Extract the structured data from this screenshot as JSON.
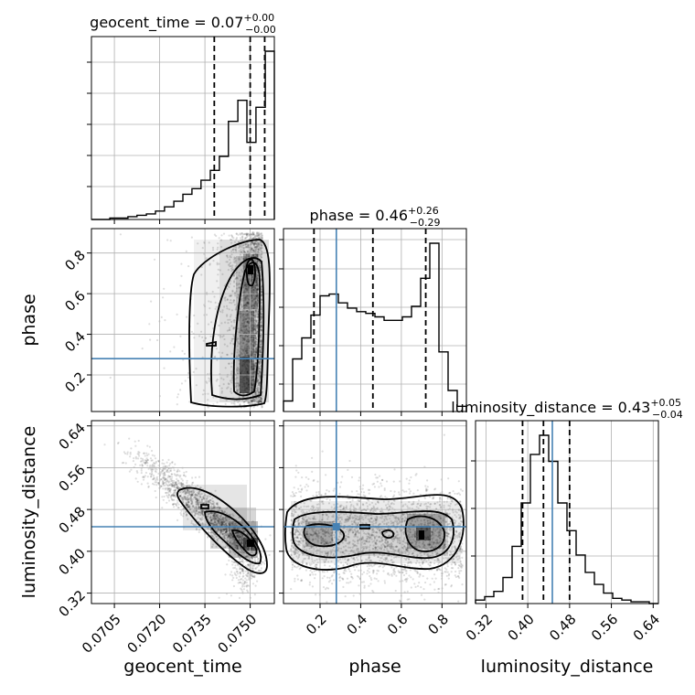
{
  "chart_data": {
    "type": "scatter",
    "subtype": "corner-plot",
    "parameters": [
      "geocent_time",
      "phase",
      "luminosity_distance"
    ],
    "colors": {
      "truth": "#4682b4",
      "hist": "#000000",
      "quantile": "#000000",
      "grid": "#b0b0b0",
      "points": "#000000"
    },
    "titles": [
      {
        "name": "geocent_time",
        "text": "geocent_time = 0.07",
        "sup": "+0.00",
        "sub": "−0.00"
      },
      {
        "name": "phase",
        "text": "phase = 0.46",
        "sup": "+0.26",
        "sub": "−0.29"
      },
      {
        "name": "luminosity_distance",
        "text": "luminosity_distance = 0.43",
        "sup": "+0.05",
        "sub": "−0.04"
      }
    ],
    "axis_labels": {
      "x": [
        "geocent_time",
        "phase",
        "luminosity_distance"
      ],
      "y": [
        "phase",
        "luminosity_distance"
      ]
    },
    "ranges": {
      "geocent_time": [
        0.06974,
        0.0758
      ],
      "phase": [
        0.02,
        0.92
      ],
      "luminosity_distance": [
        0.3,
        0.65
      ]
    },
    "ticks": {
      "geocent_time": [
        "0.0705",
        "0.0720",
        "0.0735",
        "0.0750"
      ],
      "phase_x": [
        "0.2",
        "0.4",
        "0.6",
        "0.8"
      ],
      "phase_y": [
        "0.2",
        "0.4",
        "0.6",
        "0.8"
      ],
      "luminosity_distance": [
        "0.32",
        "0.40",
        "0.48",
        "0.56",
        "0.64"
      ]
    },
    "truths": {
      "phase": 0.28,
      "luminosity_distance": 0.447
    },
    "quantiles": {
      "geocent_time": [
        0.07381,
        0.075,
        0.07548
      ],
      "phase": [
        0.17,
        0.46,
        0.72
      ],
      "luminosity_distance": [
        0.39,
        0.43,
        0.48
      ]
    },
    "histograms": {
      "geocent_time": {
        "edges": [
          0.06974,
          0.07004,
          0.07035,
          0.07065,
          0.07095,
          0.07125,
          0.07156,
          0.07186,
          0.07216,
          0.07247,
          0.07277,
          0.07307,
          0.07337,
          0.07368,
          0.07398,
          0.07428,
          0.07459,
          0.07489,
          0.07519,
          0.0755,
          0.0758
        ],
        "counts": [
          0,
          0,
          1,
          1,
          2,
          3,
          4,
          6,
          9,
          13,
          18,
          22,
          28,
          35,
          45,
          70,
          85,
          55,
          80,
          120
        ]
      },
      "phase": {
        "edges": [
          0.02,
          0.065,
          0.11,
          0.155,
          0.2,
          0.245,
          0.29,
          0.335,
          0.38,
          0.425,
          0.47,
          0.515,
          0.56,
          0.605,
          0.65,
          0.695,
          0.74,
          0.785,
          0.83,
          0.875,
          0.92
        ],
        "counts": [
          0.06,
          0.3,
          0.42,
          0.55,
          0.66,
          0.67,
          0.62,
          0.59,
          0.57,
          0.56,
          0.54,
          0.52,
          0.52,
          0.54,
          0.6,
          0.76,
          0.96,
          0.34,
          0.12,
          0.03
        ]
      },
      "luminosity_distance": {
        "edges": [
          0.3,
          0.3175,
          0.335,
          0.3525,
          0.37,
          0.3875,
          0.405,
          0.4225,
          0.44,
          0.4575,
          0.475,
          0.4925,
          0.51,
          0.5275,
          0.545,
          0.5625,
          0.58,
          0.5975,
          0.615,
          0.6325,
          0.65
        ],
        "counts": [
          0.02,
          0.04,
          0.07,
          0.15,
          0.33,
          0.58,
          0.86,
          0.97,
          0.82,
          0.58,
          0.42,
          0.28,
          0.18,
          0.11,
          0.06,
          0.03,
          0.02,
          0.01,
          0.01,
          0.0
        ]
      }
    },
    "grid": true
  }
}
